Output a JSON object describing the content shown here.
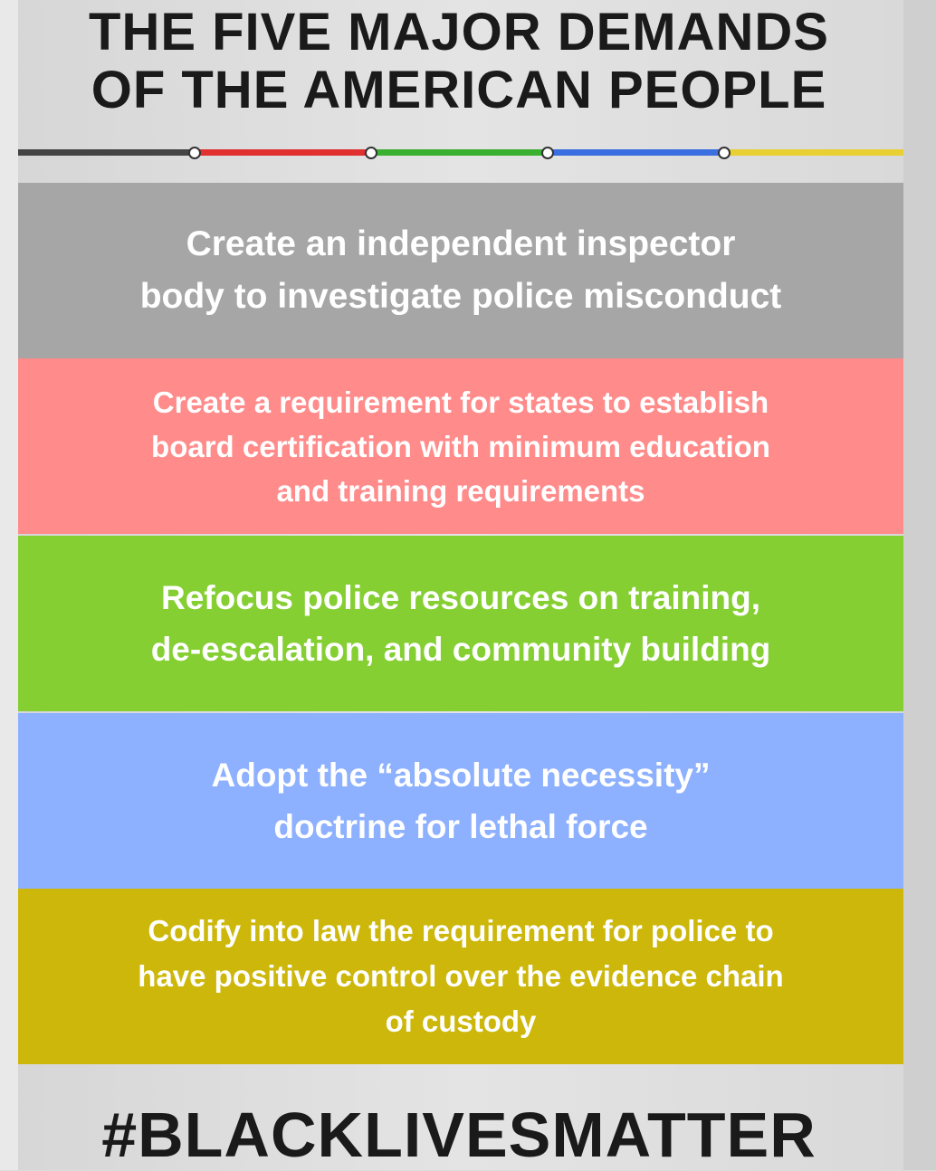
{
  "title": {
    "line1": "THE FIVE MAJOR DEMANDS",
    "line2": "OF THE AMERICAN PEOPLE"
  },
  "colors": {
    "gray": "#a6a6a6",
    "red": "#ff8b8b",
    "green": "#85cf33",
    "blue": "#8db0ff",
    "yellow": "#ccb70a",
    "timeline_black": "#444444",
    "timeline_red": "#e03030",
    "timeline_green": "#3ab030",
    "timeline_blue": "#3b6ee0",
    "timeline_yellow": "#e8d032"
  },
  "demands": [
    {
      "text": "Create an independent inspector\nbody to investigate police misconduct"
    },
    {
      "text": "Create a requirement for states to establish\nboard certification with minimum education\nand training requirements"
    },
    {
      "text": "Refocus police resources on training,\nde-escalation, and community building"
    },
    {
      "text": "Adopt the “absolute necessity”\ndoctrine for lethal force"
    },
    {
      "text": "Codify into law the requirement for police to\nhave positive control over the evidence chain\nof custody"
    }
  ],
  "hashtag": "#BLACKLIVESMATTER"
}
